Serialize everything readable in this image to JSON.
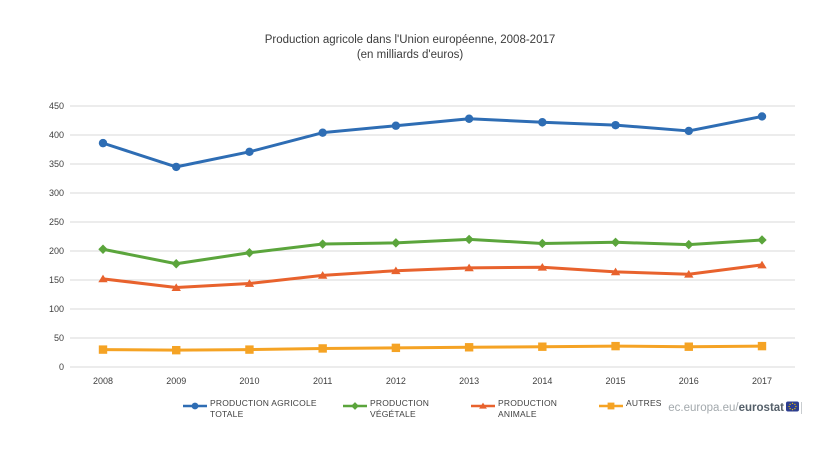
{
  "title": {
    "line1": "Production agricole dans l'Union européenne, 2008-2017",
    "line2": "(en milliards d'euros)"
  },
  "chart_data": {
    "type": "line",
    "x": [
      "2008",
      "2009",
      "2010",
      "2011",
      "2012",
      "2013",
      "2014",
      "2015",
      "2016",
      "2017"
    ],
    "series": [
      {
        "name": "PRODUCTION AGRICOLE TOTALE",
        "color": "#2e6db4",
        "marker": "circle",
        "values": [
          386,
          345,
          371,
          404,
          416,
          428,
          422,
          417,
          407,
          432
        ]
      },
      {
        "name": "PRODUCTION VÉGÉTALE",
        "color": "#5ba53c",
        "marker": "diamond",
        "values": [
          203,
          178,
          197,
          212,
          214,
          220,
          213,
          215,
          211,
          219
        ]
      },
      {
        "name": "PRODUCTION ANIMALE",
        "color": "#e8622d",
        "marker": "triangle",
        "values": [
          152,
          137,
          144,
          158,
          166,
          171,
          172,
          164,
          160,
          176
        ]
      },
      {
        "name": "AUTRES",
        "color": "#f5a324",
        "marker": "square",
        "values": [
          30,
          29,
          30,
          32,
          33,
          34,
          35,
          36,
          35,
          36
        ]
      }
    ],
    "ylim": [
      0,
      450
    ],
    "yticks": [
      0,
      50,
      100,
      150,
      200,
      250,
      300,
      350,
      400,
      450
    ],
    "grid": true,
    "legend_position": "bottom",
    "grid_color": "#d9d9d9",
    "tick_color": "#404040"
  },
  "footer": {
    "prefix": "ec.europa.eu/",
    "brand": "eurostat",
    "flag_icon": "eu-flag"
  }
}
